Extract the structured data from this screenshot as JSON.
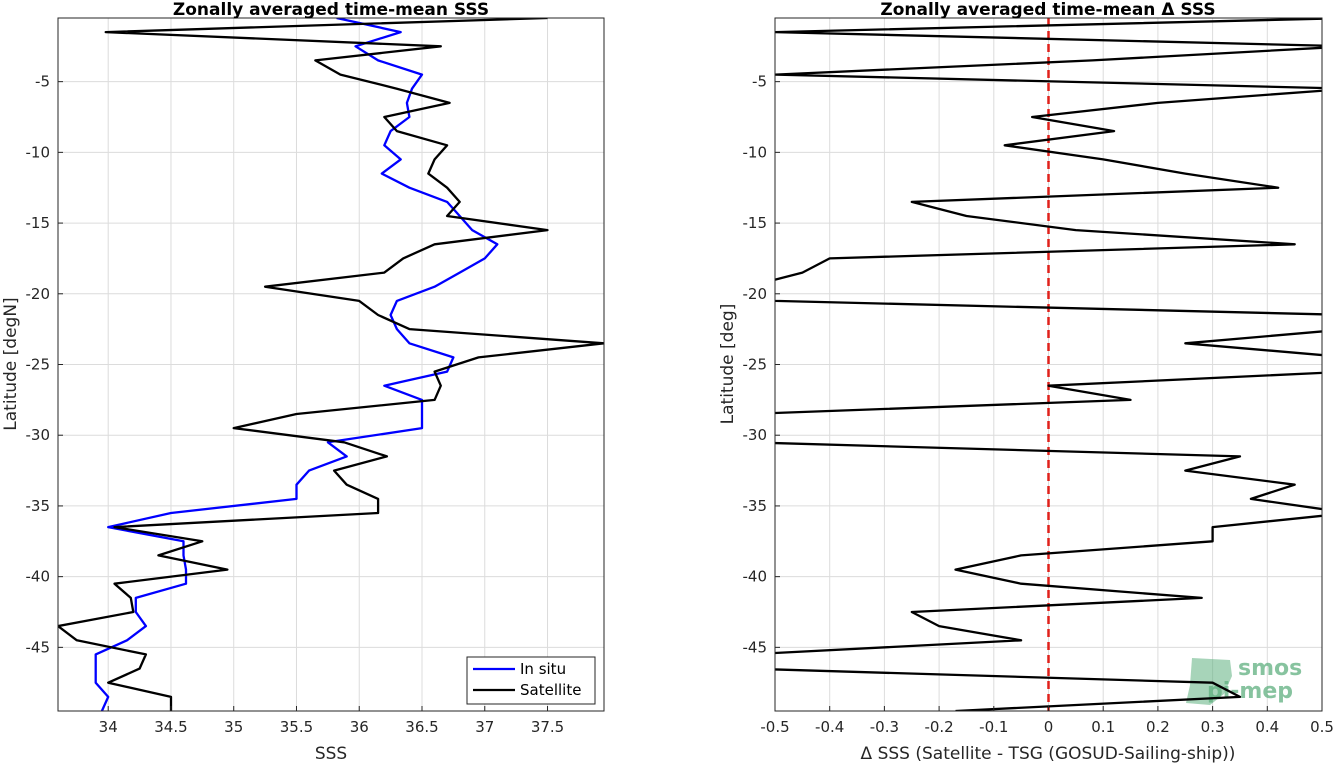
{
  "chart_data": [
    {
      "type": "line",
      "title": "Zonally averaged time-mean SSS",
      "xlabel": "SSS",
      "ylabel": "Latitude [degN]",
      "xlim": [
        33.6,
        37.95
      ],
      "ylim": [
        -49.5,
        -0.5
      ],
      "xticks": [
        34,
        34.5,
        35,
        35.5,
        36,
        36.5,
        37,
        37.5
      ],
      "yticks": [
        -5,
        -10,
        -15,
        -20,
        -25,
        -30,
        -35,
        -40,
        -45
      ],
      "grid": true,
      "legend": "bottom-right",
      "series": [
        {
          "name": "In situ",
          "color": "#0000ff",
          "points": [
            [
              35.82,
              -0.5
            ],
            [
              36.33,
              -1.5
            ],
            [
              35.97,
              -2.5
            ],
            [
              36.15,
              -3.5
            ],
            [
              36.5,
              -4.5
            ],
            [
              36.42,
              -5.5
            ],
            [
              36.38,
              -6.5
            ],
            [
              36.4,
              -7.5
            ],
            [
              36.25,
              -8.5
            ],
            [
              36.2,
              -9.5
            ],
            [
              36.33,
              -10.5
            ],
            [
              36.18,
              -11.5
            ],
            [
              36.4,
              -12.5
            ],
            [
              36.7,
              -13.5
            ],
            [
              36.8,
              -14.5
            ],
            [
              36.9,
              -15.5
            ],
            [
              37.1,
              -16.5
            ],
            [
              37.0,
              -17.5
            ],
            [
              36.8,
              -18.5
            ],
            [
              36.6,
              -19.5
            ],
            [
              36.3,
              -20.5
            ],
            [
              36.25,
              -21.5
            ],
            [
              36.3,
              -22.5
            ],
            [
              36.4,
              -23.5
            ],
            [
              36.75,
              -24.5
            ],
            [
              36.7,
              -25.5
            ],
            [
              36.2,
              -26.5
            ],
            [
              36.5,
              -27.5
            ],
            [
              36.5,
              -28.5
            ],
            [
              36.5,
              -29.5
            ],
            [
              35.75,
              -30.5
            ],
            [
              35.9,
              -31.5
            ],
            [
              35.6,
              -32.5
            ],
            [
              35.5,
              -33.5
            ],
            [
              35.5,
              -34.5
            ],
            [
              34.5,
              -35.5
            ],
            [
              34.0,
              -36.5
            ],
            [
              34.6,
              -37.5
            ],
            [
              34.6,
              -38.5
            ],
            [
              34.62,
              -39.5
            ],
            [
              34.62,
              -40.5
            ],
            [
              34.22,
              -41.5
            ],
            [
              34.22,
              -42.5
            ],
            [
              34.3,
              -43.5
            ],
            [
              34.15,
              -44.5
            ],
            [
              33.9,
              -45.5
            ],
            [
              33.9,
              -46.5
            ],
            [
              33.9,
              -47.5
            ],
            [
              34.0,
              -48.5
            ],
            [
              33.95,
              -49.5
            ]
          ]
        },
        {
          "name": "Satellite",
          "color": "#000000",
          "points": [
            [
              37.5,
              -0.5
            ],
            [
              33.98,
              -1.5
            ],
            [
              36.65,
              -2.5
            ],
            [
              35.65,
              -3.5
            ],
            [
              35.85,
              -4.5
            ],
            [
              36.3,
              -5.5
            ],
            [
              36.72,
              -6.5
            ],
            [
              36.2,
              -7.5
            ],
            [
              36.3,
              -8.5
            ],
            [
              36.7,
              -9.5
            ],
            [
              36.6,
              -10.5
            ],
            [
              36.55,
              -11.5
            ],
            [
              36.7,
              -12.5
            ],
            [
              36.8,
              -13.5
            ],
            [
              36.7,
              -14.5
            ],
            [
              37.5,
              -15.5
            ],
            [
              36.6,
              -16.5
            ],
            [
              36.35,
              -17.5
            ],
            [
              36.2,
              -18.5
            ],
            [
              35.25,
              -19.5
            ],
            [
              36.0,
              -20.5
            ],
            [
              36.15,
              -21.5
            ],
            [
              36.4,
              -22.5
            ],
            [
              37.95,
              -23.5
            ],
            [
              36.95,
              -24.5
            ],
            [
              36.6,
              -25.5
            ],
            [
              36.65,
              -26.5
            ],
            [
              36.6,
              -27.5
            ],
            [
              35.5,
              -28.5
            ],
            [
              35.0,
              -29.5
            ],
            [
              35.88,
              -30.5
            ],
            [
              36.22,
              -31.5
            ],
            [
              35.8,
              -32.5
            ],
            [
              35.9,
              -33.5
            ],
            [
              36.15,
              -34.5
            ],
            [
              36.15,
              -35.5
            ],
            [
              34.05,
              -36.5
            ],
            [
              34.75,
              -37.5
            ],
            [
              34.4,
              -38.5
            ],
            [
              34.95,
              -39.5
            ],
            [
              34.05,
              -40.5
            ],
            [
              34.18,
              -41.5
            ],
            [
              34.2,
              -42.5
            ],
            [
              33.6,
              -43.5
            ],
            [
              33.75,
              -44.5
            ],
            [
              34.3,
              -45.5
            ],
            [
              34.25,
              -46.5
            ],
            [
              34.0,
              -47.5
            ],
            [
              34.5,
              -48.5
            ],
            [
              34.5,
              -49.5
            ]
          ]
        }
      ]
    },
    {
      "type": "line",
      "title": "Zonally averaged time-mean Δ SSS",
      "xlabel": "Δ SSS (Satellite - TSG (GOSUD-Sailing-ship))",
      "ylabel": "Latitude [deg]",
      "xlim": [
        -0.5,
        0.5
      ],
      "ylim": [
        -49.5,
        -0.5
      ],
      "xticks": [
        -0.5,
        -0.4,
        -0.3,
        -0.2,
        -0.1,
        0,
        0.1,
        0.2,
        0.3,
        0.4,
        0.5
      ],
      "yticks": [
        -5,
        -10,
        -15,
        -20,
        -25,
        -30,
        -35,
        -40,
        -45
      ],
      "grid": true,
      "reference_line": {
        "x": 0,
        "color": "#e0201a",
        "style": "dashed"
      },
      "series": [
        {
          "color": "#000000",
          "points": [
            [
              0.55,
              -0.5
            ],
            [
              -0.5,
              -1.5
            ],
            [
              0.55,
              -2.5
            ],
            [
              0.08,
              -3.5
            ],
            [
              -0.5,
              -4.5
            ],
            [
              0.55,
              -5.5
            ],
            [
              0.2,
              -6.5
            ],
            [
              -0.03,
              -7.5
            ],
            [
              0.12,
              -8.5
            ],
            [
              -0.08,
              -9.5
            ],
            [
              0.1,
              -10.5
            ],
            [
              0.25,
              -11.5
            ],
            [
              0.42,
              -12.5
            ],
            [
              -0.25,
              -13.5
            ],
            [
              -0.15,
              -14.5
            ],
            [
              0.05,
              -15.5
            ],
            [
              0.45,
              -16.5
            ],
            [
              -0.4,
              -17.5
            ],
            [
              -0.45,
              -18.5
            ],
            [
              -0.55,
              -19.5
            ],
            [
              -0.5,
              -20.5
            ],
            [
              0.55,
              -21.5
            ],
            [
              0.55,
              -22.5
            ],
            [
              0.25,
              -23.5
            ],
            [
              0.55,
              -24.5
            ],
            [
              0.55,
              -25.5
            ],
            [
              0.0,
              -26.5
            ],
            [
              0.15,
              -27.5
            ],
            [
              -0.55,
              -28.5
            ],
            [
              -0.55,
              -29.5
            ],
            [
              -0.55,
              -30.5
            ],
            [
              0.35,
              -31.5
            ],
            [
              0.25,
              -32.5
            ],
            [
              0.45,
              -33.5
            ],
            [
              0.37,
              -34.5
            ],
            [
              0.55,
              -35.5
            ],
            [
              0.3,
              -36.5
            ],
            [
              0.3,
              -37.5
            ],
            [
              -0.05,
              -38.5
            ],
            [
              -0.17,
              -39.5
            ],
            [
              -0.05,
              -40.5
            ],
            [
              0.28,
              -41.5
            ],
            [
              -0.25,
              -42.5
            ],
            [
              -0.2,
              -43.5
            ],
            [
              -0.05,
              -44.5
            ],
            [
              -0.55,
              -45.5
            ],
            [
              -0.55,
              -46.5
            ],
            [
              0.3,
              -47.5
            ],
            [
              0.35,
              -48.5
            ],
            [
              -0.17,
              -49.5
            ]
          ]
        }
      ]
    }
  ],
  "legend": {
    "insitu": "In situ",
    "satellite": "Satellite"
  },
  "watermark": {
    "line1": "smos",
    "line2": "pi-mep",
    "color": "#5fb07f"
  }
}
